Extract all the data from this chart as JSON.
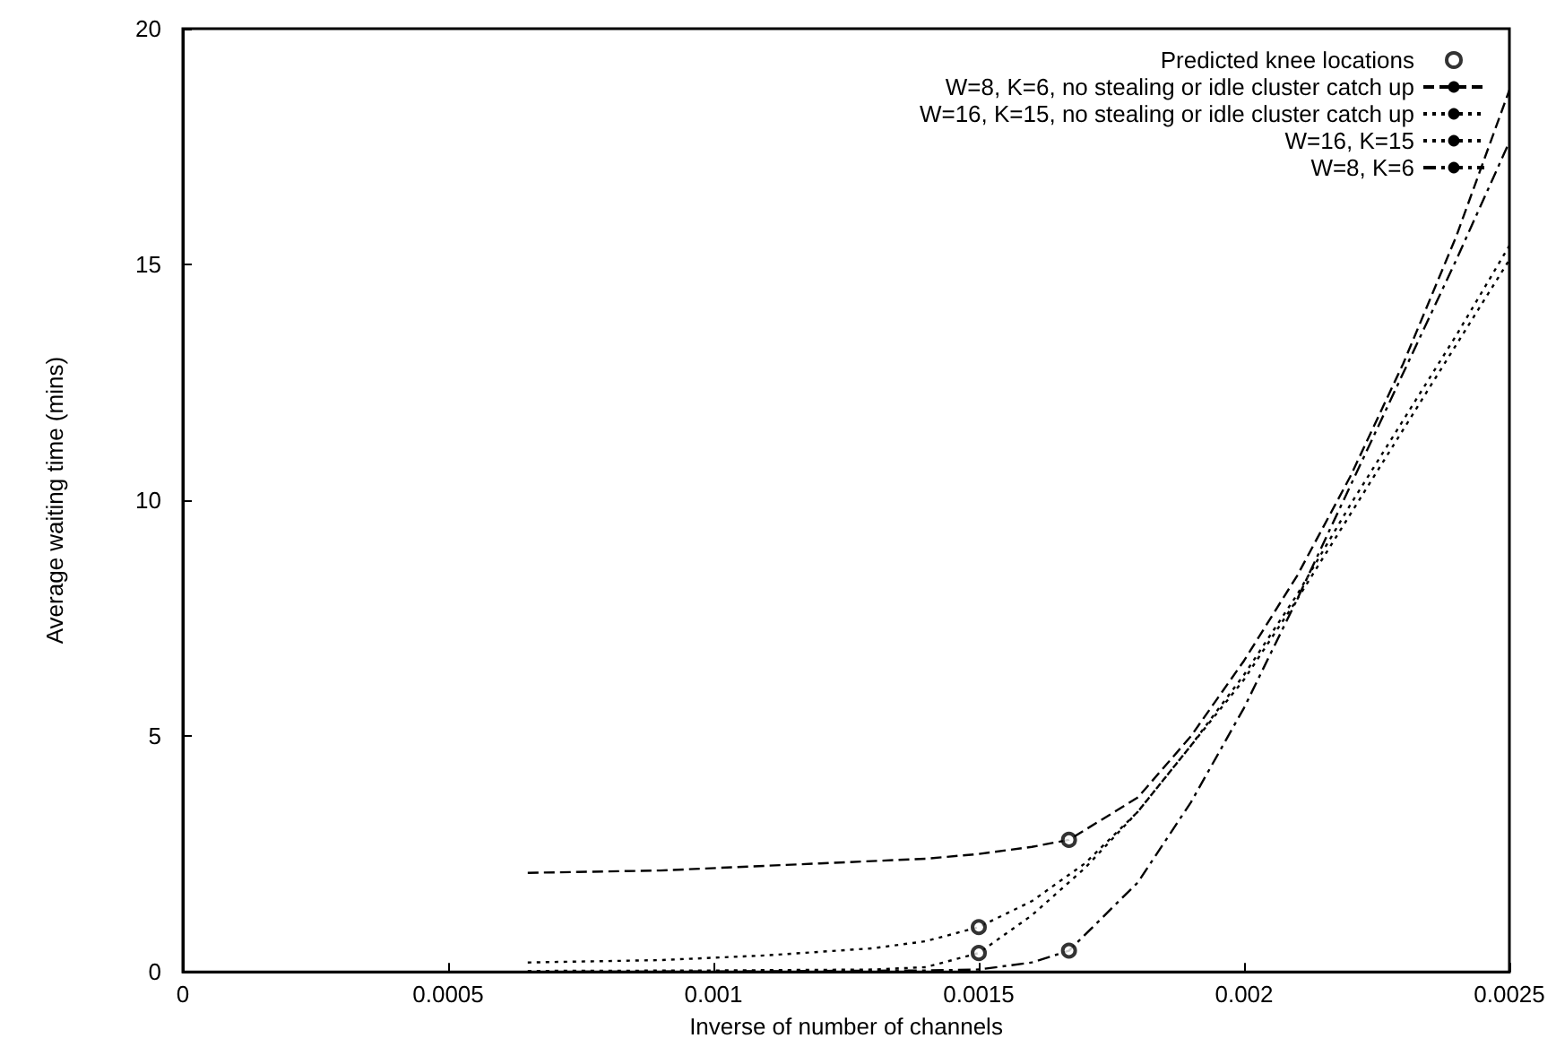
{
  "chart_data": {
    "type": "line",
    "xlabel": "Inverse of number of channels",
    "ylabel": "Average waiting time (mins)",
    "xlim": [
      0,
      0.0025
    ],
    "xticks": [
      0,
      0.0005,
      0.001,
      0.0015,
      0.002,
      0.0025
    ],
    "ylim": [
      0,
      20
    ],
    "yticks": [
      0,
      5,
      10,
      15,
      20
    ],
    "grid": false,
    "legend": "top right",
    "series": [
      {
        "name": "Predicted knee locations",
        "type": "scatter",
        "marker": "circle",
        "color": "#000000",
        "x": [
          0.00167,
          0.0015,
          0.0015,
          0.00167
        ],
        "values": [
          2.8,
          0.95,
          0.4,
          0.45
        ]
      },
      {
        "name": "W=8, K=6, no stealing or idle cluster catch up",
        "color": "#000000",
        "line_style": "dashed",
        "x": [
          0.00065,
          0.0009,
          0.0012,
          0.0014,
          0.0015,
          0.0016,
          0.00167,
          0.0018,
          0.0019,
          0.002,
          0.0021,
          0.0022,
          0.0023,
          0.0024,
          0.0025
        ],
        "values": [
          2.1,
          2.15,
          2.3,
          2.4,
          2.5,
          2.65,
          2.8,
          3.7,
          5.0,
          6.6,
          8.4,
          10.5,
          12.9,
          15.6,
          18.7
        ]
      },
      {
        "name": "W=16, K=15, no stealing or idle cluster catch up",
        "color": "#000000",
        "line_style": "dotted",
        "x": [
          0.00065,
          0.0009,
          0.0011,
          0.0013,
          0.0014,
          0.0015,
          0.0016,
          0.0017,
          0.0018,
          0.0019,
          0.002,
          0.0021,
          0.0022,
          0.0023,
          0.0024,
          0.0025
        ],
        "values": [
          0.2,
          0.25,
          0.35,
          0.5,
          0.65,
          0.95,
          1.5,
          2.3,
          3.4,
          4.8,
          6.3,
          8.0,
          9.9,
          11.7,
          13.5,
          15.4
        ]
      },
      {
        "name": "W=16, K=15",
        "color": "#000000",
        "line_style": "dotted",
        "x": [
          0.00065,
          0.001,
          0.0013,
          0.0014,
          0.0015,
          0.0016,
          0.0017,
          0.0018,
          0.0019,
          0.002,
          0.0021,
          0.0022,
          0.0023,
          0.0024,
          0.0025
        ],
        "values": [
          0.02,
          0.03,
          0.05,
          0.1,
          0.4,
          1.2,
          2.2,
          3.4,
          4.8,
          6.2,
          7.9,
          9.7,
          11.5,
          13.3,
          15.1
        ]
      },
      {
        "name": "W=8, K=6",
        "color": "#000000",
        "line_style": "dashdot",
        "x": [
          0.00065,
          0.001,
          0.0014,
          0.0015,
          0.0016,
          0.00167,
          0.0018,
          0.0019,
          0.002,
          0.0021,
          0.0022,
          0.0023,
          0.0024,
          0.0025
        ],
        "values": [
          0.0,
          0.01,
          0.03,
          0.05,
          0.2,
          0.45,
          1.9,
          3.6,
          5.6,
          7.9,
          10.3,
          12.7,
          15.1,
          17.6
        ]
      }
    ]
  }
}
